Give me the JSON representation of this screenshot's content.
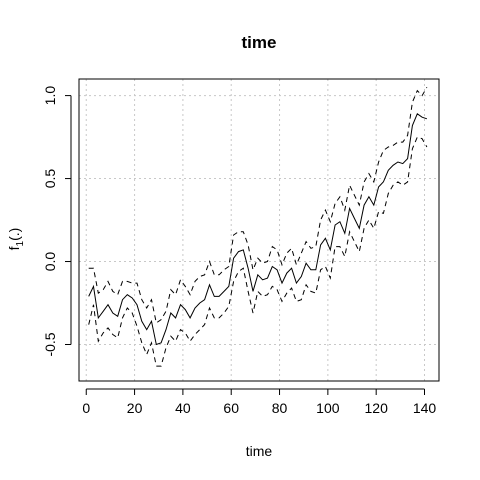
{
  "chart_data": {
    "type": "line",
    "title": "time",
    "xlabel": "time",
    "ylabel_main": "f",
    "ylabel_sub": "1",
    "ylabel_tail": "(.)",
    "xlim": [
      -3,
      146
    ],
    "ylim": [
      -0.72,
      1.1
    ],
    "x_ticks": [
      0,
      20,
      40,
      60,
      80,
      100,
      120,
      140
    ],
    "x_tick_labels": [
      "0",
      "20",
      "40",
      "60",
      "80",
      "100",
      "120",
      "140"
    ],
    "y_ticks": [
      -0.5,
      0.0,
      0.5,
      1.0
    ],
    "y_tick_labels": [
      "-0.5",
      "0.0",
      "0.5",
      "1.0"
    ],
    "grid": true,
    "x": [
      1,
      3,
      5,
      7,
      9,
      11,
      13,
      15,
      17,
      19,
      21,
      23,
      25,
      27,
      29,
      31,
      33,
      35,
      37,
      39,
      41,
      43,
      45,
      47,
      49,
      51,
      53,
      55,
      57,
      59,
      61,
      63,
      65,
      67,
      69,
      71,
      73,
      75,
      77,
      79,
      81,
      83,
      85,
      87,
      89,
      91,
      93,
      95,
      97,
      99,
      101,
      103,
      105,
      107,
      109,
      111,
      113,
      115,
      117,
      119,
      121,
      123,
      125,
      127,
      129,
      131,
      133,
      135,
      137,
      139,
      141
    ],
    "series": [
      {
        "role": "estimate",
        "values": [
          -0.21,
          -0.15,
          -0.34,
          -0.3,
          -0.26,
          -0.31,
          -0.33,
          -0.23,
          -0.2,
          -0.22,
          -0.26,
          -0.36,
          -0.41,
          -0.36,
          -0.5,
          -0.49,
          -0.41,
          -0.31,
          -0.34,
          -0.26,
          -0.29,
          -0.34,
          -0.28,
          -0.25,
          -0.23,
          -0.14,
          -0.21,
          -0.21,
          -0.18,
          -0.15,
          0.02,
          0.06,
          0.07,
          -0.04,
          -0.18,
          -0.08,
          -0.11,
          -0.1,
          -0.03,
          -0.05,
          -0.13,
          -0.07,
          -0.04,
          -0.13,
          -0.09,
          -0.01,
          -0.05,
          -0.05,
          0.1,
          0.14,
          0.07,
          0.22,
          0.24,
          0.17,
          0.32,
          0.26,
          0.2,
          0.34,
          0.39,
          0.34,
          0.45,
          0.48,
          0.55,
          0.58,
          0.6,
          0.59,
          0.62,
          0.82,
          0.89,
          0.87,
          0.86
        ]
      },
      {
        "role": "upper-band",
        "values": [
          -0.04,
          -0.04,
          -0.19,
          -0.17,
          -0.12,
          -0.18,
          -0.2,
          -0.12,
          -0.12,
          -0.13,
          -0.13,
          -0.23,
          -0.28,
          -0.23,
          -0.37,
          -0.35,
          -0.3,
          -0.17,
          -0.2,
          -0.11,
          -0.15,
          -0.2,
          -0.12,
          -0.09,
          -0.08,
          0.0,
          -0.08,
          -0.08,
          -0.05,
          -0.03,
          0.16,
          0.18,
          0.18,
          0.1,
          -0.05,
          0.02,
          -0.01,
          0.0,
          0.09,
          0.07,
          -0.02,
          0.05,
          0.08,
          -0.02,
          0.05,
          0.12,
          0.08,
          0.09,
          0.25,
          0.31,
          0.24,
          0.35,
          0.39,
          0.31,
          0.46,
          0.4,
          0.34,
          0.48,
          0.53,
          0.48,
          0.6,
          0.67,
          0.69,
          0.7,
          0.72,
          0.72,
          0.76,
          0.96,
          1.03,
          1.0,
          1.05
        ]
      },
      {
        "role": "lower-band",
        "values": [
          -0.38,
          -0.26,
          -0.48,
          -0.43,
          -0.4,
          -0.44,
          -0.46,
          -0.34,
          -0.28,
          -0.31,
          -0.39,
          -0.49,
          -0.56,
          -0.49,
          -0.63,
          -0.63,
          -0.52,
          -0.45,
          -0.48,
          -0.41,
          -0.43,
          -0.48,
          -0.44,
          -0.41,
          -0.38,
          -0.28,
          -0.34,
          -0.34,
          -0.31,
          -0.27,
          -0.12,
          -0.06,
          -0.04,
          -0.18,
          -0.31,
          -0.18,
          -0.21,
          -0.2,
          -0.15,
          -0.17,
          -0.24,
          -0.19,
          -0.16,
          -0.24,
          -0.23,
          -0.14,
          -0.18,
          -0.19,
          -0.05,
          -0.03,
          -0.1,
          0.09,
          0.09,
          0.03,
          0.18,
          0.12,
          0.06,
          0.2,
          0.25,
          0.2,
          0.3,
          0.29,
          0.41,
          0.46,
          0.48,
          0.46,
          0.48,
          0.68,
          0.75,
          0.74,
          0.69
        ]
      }
    ]
  }
}
